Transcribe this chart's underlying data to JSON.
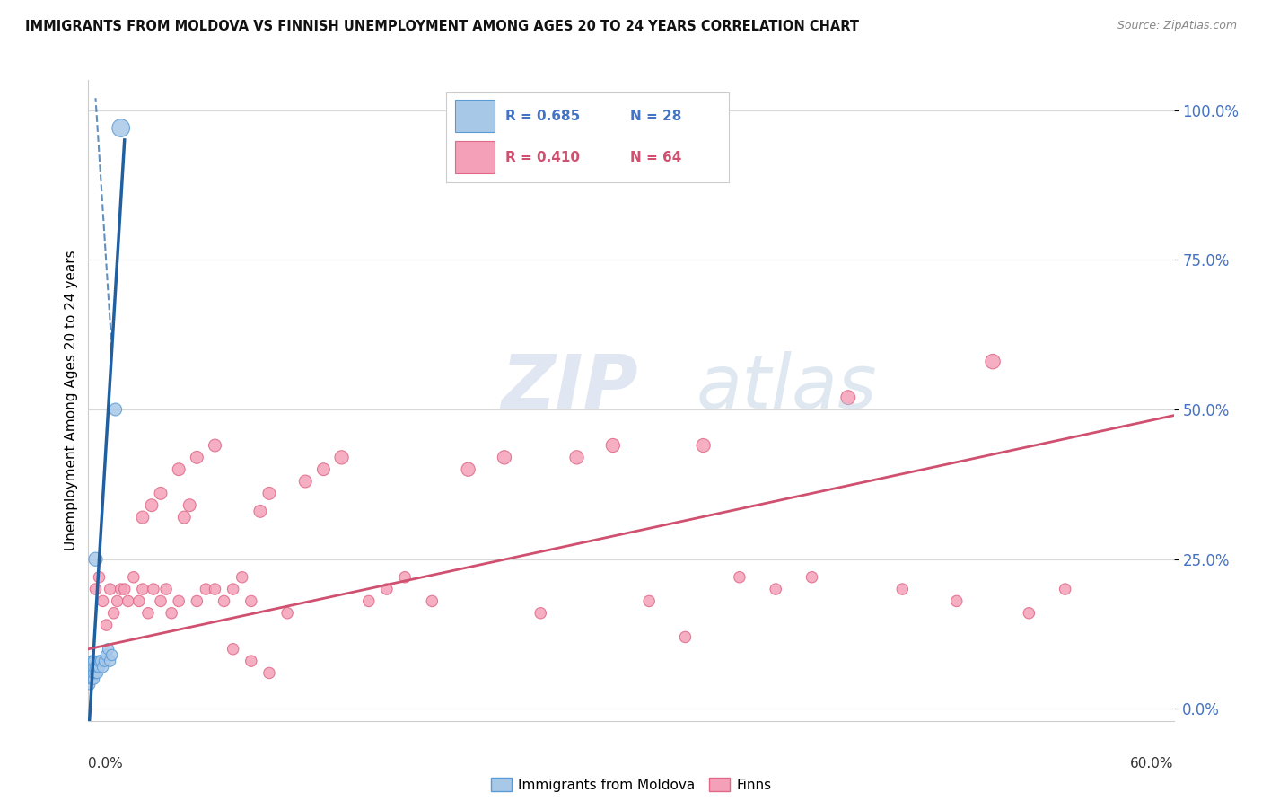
{
  "title": "IMMIGRANTS FROM MOLDOVA VS FINNISH UNEMPLOYMENT AMONG AGES 20 TO 24 YEARS CORRELATION CHART",
  "source": "Source: ZipAtlas.com",
  "ylabel": "Unemployment Among Ages 20 to 24 years",
  "xlim": [
    0,
    0.6
  ],
  "ylim": [
    -0.02,
    1.05
  ],
  "yticks": [
    0.0,
    0.25,
    0.5,
    0.75,
    1.0
  ],
  "ytick_labels": [
    "0.0%",
    "25.0%",
    "50.0%",
    "75.0%",
    "100.0%"
  ],
  "moldova_color": "#a8c8e8",
  "moldova_edge": "#5b9bd5",
  "finn_color": "#f4a0b8",
  "finn_edge": "#e06888",
  "line_moldova_color": "#2060a0",
  "line_finn_color": "#d05070",
  "background_color": "#ffffff",
  "grid_color": "#d8d8d8",
  "moldova_points_x": [
    0.001,
    0.001,
    0.001,
    0.001,
    0.002,
    0.002,
    0.002,
    0.002,
    0.003,
    0.003,
    0.003,
    0.003,
    0.004,
    0.004,
    0.004,
    0.005,
    0.005,
    0.006,
    0.006,
    0.007,
    0.008,
    0.009,
    0.01,
    0.011,
    0.012,
    0.013,
    0.015,
    0.018
  ],
  "moldova_points_y": [
    0.04,
    0.05,
    0.06,
    0.07,
    0.05,
    0.06,
    0.07,
    0.08,
    0.05,
    0.06,
    0.07,
    0.08,
    0.06,
    0.07,
    0.25,
    0.06,
    0.07,
    0.07,
    0.08,
    0.08,
    0.07,
    0.08,
    0.09,
    0.1,
    0.08,
    0.09,
    0.5,
    0.97
  ],
  "moldova_sizes": [
    60,
    60,
    60,
    60,
    80,
    80,
    80,
    80,
    80,
    80,
    80,
    80,
    80,
    80,
    120,
    80,
    80,
    80,
    80,
    80,
    80,
    80,
    80,
    80,
    80,
    80,
    100,
    200
  ],
  "finn_points_x": [
    0.004,
    0.006,
    0.008,
    0.01,
    0.012,
    0.014,
    0.016,
    0.018,
    0.02,
    0.022,
    0.025,
    0.028,
    0.03,
    0.033,
    0.036,
    0.04,
    0.043,
    0.046,
    0.05,
    0.053,
    0.056,
    0.06,
    0.065,
    0.07,
    0.075,
    0.08,
    0.085,
    0.09,
    0.095,
    0.1,
    0.11,
    0.12,
    0.13,
    0.14,
    0.155,
    0.165,
    0.175,
    0.19,
    0.21,
    0.23,
    0.25,
    0.27,
    0.29,
    0.31,
    0.34,
    0.36,
    0.38,
    0.4,
    0.42,
    0.45,
    0.48,
    0.5,
    0.52,
    0.54,
    0.03,
    0.035,
    0.04,
    0.05,
    0.06,
    0.07,
    0.08,
    0.09,
    0.1,
    0.33
  ],
  "finn_points_y": [
    0.2,
    0.22,
    0.18,
    0.14,
    0.2,
    0.16,
    0.18,
    0.2,
    0.2,
    0.18,
    0.22,
    0.18,
    0.2,
    0.16,
    0.2,
    0.18,
    0.2,
    0.16,
    0.18,
    0.32,
    0.34,
    0.18,
    0.2,
    0.2,
    0.18,
    0.2,
    0.22,
    0.18,
    0.33,
    0.36,
    0.16,
    0.38,
    0.4,
    0.42,
    0.18,
    0.2,
    0.22,
    0.18,
    0.4,
    0.42,
    0.16,
    0.42,
    0.44,
    0.18,
    0.44,
    0.22,
    0.2,
    0.22,
    0.52,
    0.2,
    0.18,
    0.58,
    0.16,
    0.2,
    0.32,
    0.34,
    0.36,
    0.4,
    0.42,
    0.44,
    0.1,
    0.08,
    0.06,
    0.12
  ],
  "finn_sizes": [
    80,
    80,
    80,
    80,
    80,
    80,
    80,
    80,
    80,
    80,
    80,
    80,
    80,
    80,
    80,
    80,
    80,
    80,
    80,
    100,
    100,
    80,
    80,
    80,
    80,
    80,
    80,
    80,
    100,
    100,
    80,
    100,
    100,
    120,
    80,
    80,
    80,
    80,
    120,
    120,
    80,
    120,
    120,
    80,
    120,
    80,
    80,
    80,
    130,
    80,
    80,
    140,
    80,
    80,
    100,
    100,
    100,
    100,
    100,
    100,
    80,
    80,
    80,
    80
  ],
  "moldova_reg_slope": 50.0,
  "moldova_reg_intercept": -0.05,
  "finn_reg_slope": 0.65,
  "finn_reg_intercept": 0.1
}
